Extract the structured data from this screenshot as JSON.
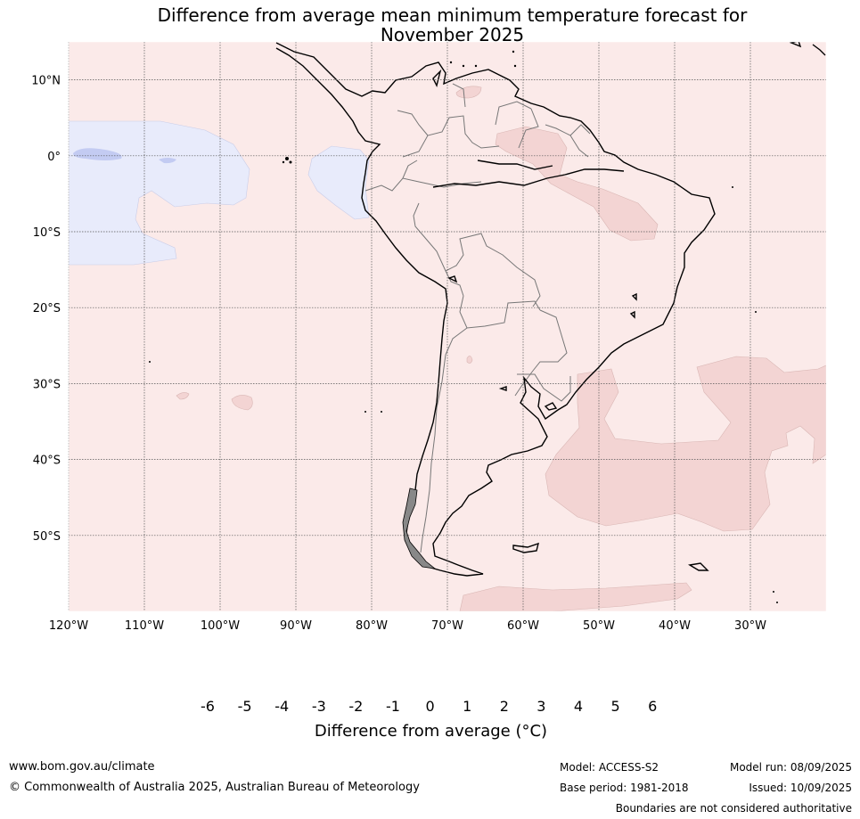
{
  "title": {
    "line1": "Difference from average mean minimum temperature forecast for",
    "line2": "November 2025"
  },
  "map": {
    "region": "South America",
    "projection": "equirectangular",
    "lon_range": [
      -120,
      -20
    ],
    "lat_range": [
      -60,
      15
    ],
    "grid": true,
    "lat_labels": [
      "10°N",
      "0°",
      "10°S",
      "20°S",
      "30°S",
      "40°S",
      "50°S"
    ],
    "lon_labels": [
      "120°W",
      "110°W",
      "100°W",
      "90°W",
      "80°W",
      "70°W",
      "60°W",
      "50°W",
      "40°W",
      "30°W"
    ],
    "background_anomaly_band": "0 to 1",
    "colors": {
      "band_0_1": "#fbeae9",
      "band_1_2": "#f3d4d3",
      "band_m1_0": "#e8ebfb",
      "band_m2_m1": "#c3cbf2",
      "coast": "#000000",
      "borders": "#777777"
    }
  },
  "colorbar": {
    "labels": [
      "-6",
      "-5",
      "-4",
      "-3",
      "-2",
      "-1",
      "0",
      "1",
      "2",
      "3",
      "4",
      "5",
      "6"
    ],
    "colors": [
      "#1f2f7f",
      "#2a3eb0",
      "#2f4fe0",
      "#5c74e6",
      "#8a9bec",
      "#c3cbf2",
      "#e8ebfb",
      "#fbeae9",
      "#f3d4d3",
      "#ecaeaa",
      "#e8857e",
      "#da4a3e",
      "#a92a22",
      "#701a16"
    ],
    "title": "Difference from average (°C)"
  },
  "footer": {
    "website": "www.bom.gov.au/climate",
    "copyright": "© Commonwealth of Australia 2025, Australian Bureau of Meteorology",
    "model": "Model: ACCESS-S2",
    "base_period": "Base period: 1981-2018",
    "model_run": "Model run: 08/09/2025",
    "issued": "Issued: 10/09/2025",
    "disclaimer": "Boundaries are not considered authoritative"
  }
}
